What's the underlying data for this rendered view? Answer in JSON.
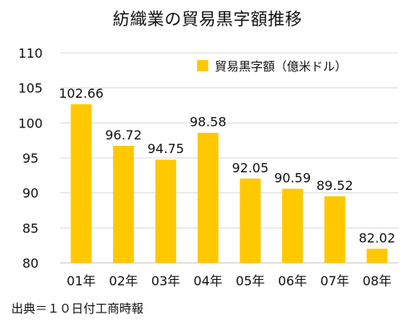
{
  "chart_data": {
    "type": "bar",
    "title": "紡織業の貿易黒字額推移",
    "categories": [
      "01年",
      "02年",
      "03年",
      "04年",
      "05年",
      "06年",
      "07年",
      "08年"
    ],
    "series": [
      {
        "name": "貿易黒字額（億米ドル）",
        "values": [
          102.66,
          96.72,
          94.75,
          98.58,
          92.05,
          90.59,
          89.52,
          82.02
        ],
        "value_labels": [
          "102.66",
          "96.72",
          "94.75",
          "98.58",
          "92.05",
          "90.59",
          "89.52",
          "82.02"
        ],
        "color": "#ffc800"
      }
    ],
    "ylim": [
      80,
      110
    ],
    "yticks": [
      80,
      85,
      90,
      95,
      100,
      105,
      110
    ],
    "grid": true,
    "legend_position": "top-right",
    "xlabel": "",
    "ylabel": ""
  },
  "source_note": "出典＝１０日付工商時報",
  "colors": {
    "bar": "#ffc800",
    "grid": "#d9d9d9",
    "axis": "#bfbfbf"
  }
}
